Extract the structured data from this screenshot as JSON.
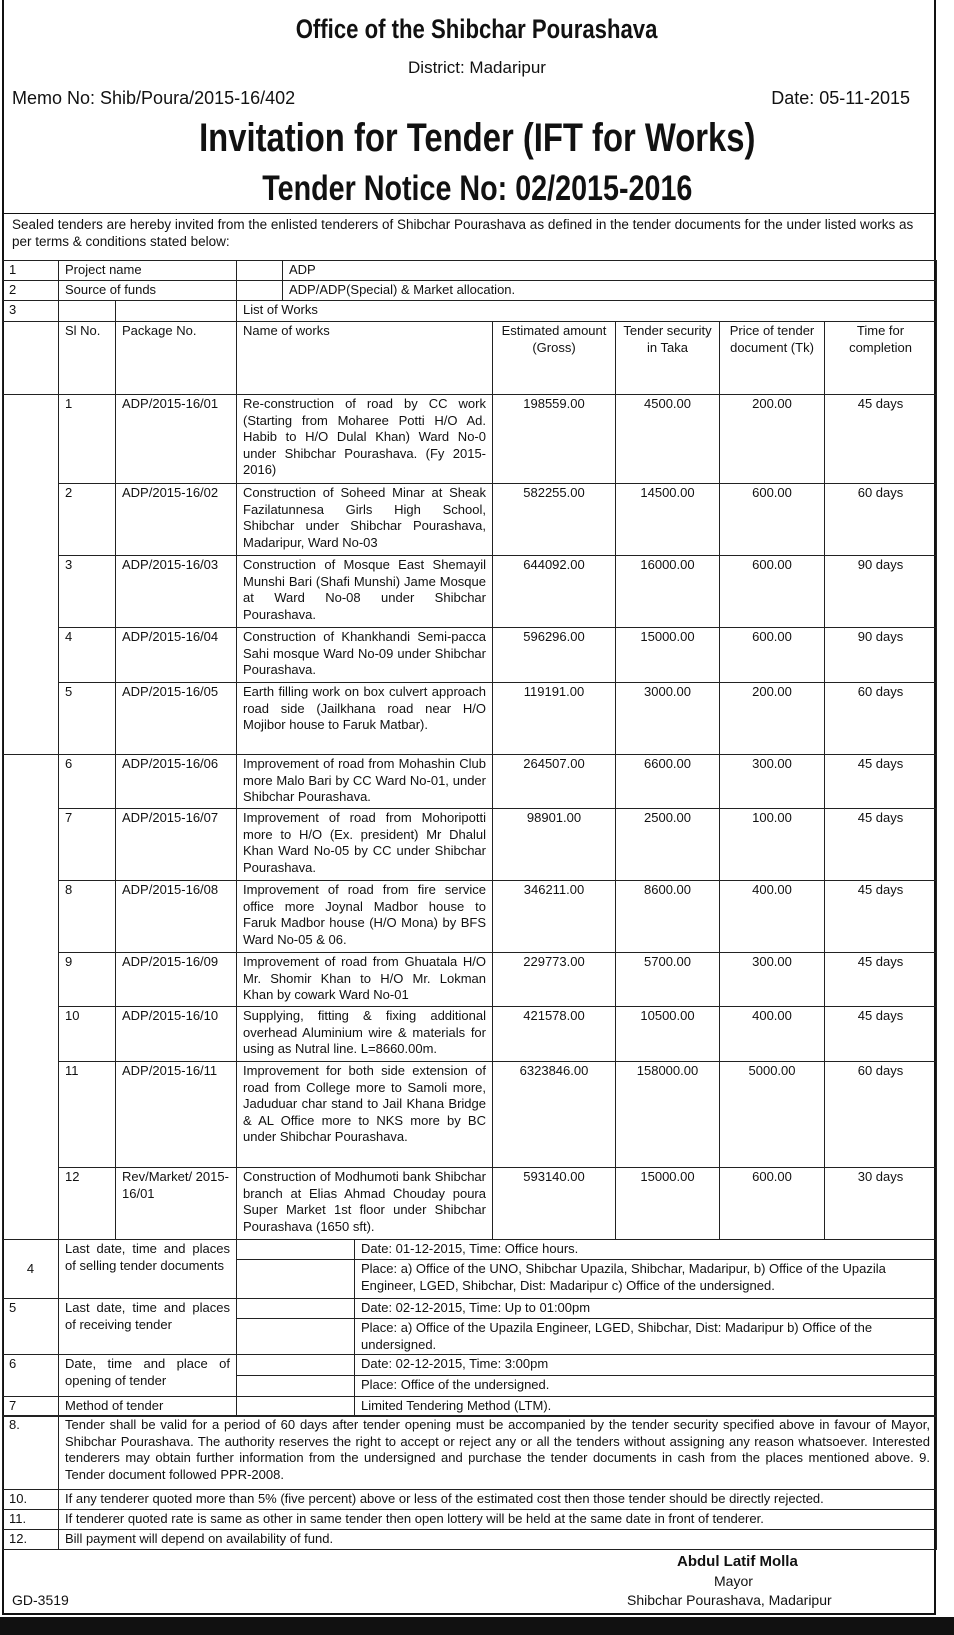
{
  "header": {
    "office_title": "Office of the Shibchar Pourashava",
    "district": "District: Madaripur",
    "memo_no": "Memo No: Shib/Poura/2015-16/402",
    "date": "Date: 05-11-2015",
    "ift_title": "Invitation for Tender (IFT for Works)",
    "tender_notice": "Tender Notice No: 02/2015-2016"
  },
  "intro": "Sealed tenders are hereby invited from the enlisted tenderers of Shibchar Pourashava as defined in the tender documents for the under listed works as per terms & conditions stated below:",
  "top_rows": [
    {
      "no": "1",
      "label": "Project name",
      "value": "ADP"
    },
    {
      "no": "2",
      "label": "Source of funds",
      "value": "ADP/ADP(Special) & Market allocation."
    },
    {
      "no": "3",
      "value": "List of Works"
    }
  ],
  "works": {
    "columns": [
      "Sl No.",
      "Package No.",
      "Name of works",
      "Estimated amount (Gross)",
      "Tender security in Taka",
      "Price of tender document (Tk)",
      "Time for completion"
    ],
    "rows": [
      [
        "1",
        "ADP/2015-16/01",
        "Re-construction of road by CC work (Starting from Moharee Potti H/O Ad. Habib to H/O Dulal Khan) Ward No-0 under Shibchar Pourashava. (Fy 2015-2016)",
        "198559.00",
        "4500.00",
        "200.00",
        "45 days"
      ],
      [
        "2",
        "ADP/2015-16/02",
        "Construction of Soheed Minar at Sheak Fazilatunnesa Girls High School, Shibchar under Shibchar Pourashava, Madaripur, Ward No-03",
        "582255.00",
        "14500.00",
        "600.00",
        "60 days"
      ],
      [
        "3",
        "ADP/2015-16/03",
        "Construction of Mosque East Shemayil Munshi Bari (Shafi Munshi) Jame Mosque at Ward No-08 under Shibchar Pourashava.",
        "644092.00",
        "16000.00",
        "600.00",
        "90 days"
      ],
      [
        "4",
        "ADP/2015-16/04",
        "Construction of Khankhandi Semi-pacca Sahi mosque Ward No-09 under Shibchar Pourashava.",
        "596296.00",
        "15000.00",
        "600.00",
        "90 days"
      ],
      [
        "5",
        "ADP/2015-16/05",
        "Earth filling work on box culvert approach road side (Jailkhana road near H/O Mojibor house to Faruk Matbar).",
        "119191.00",
        "3000.00",
        "200.00",
        "60 days"
      ],
      [
        "6",
        "ADP/2015-16/06",
        "Improvement of road from Mohashin Club more Malo Bari by CC Ward No-01, under Shibchar Pourashava.",
        "264507.00",
        "6600.00",
        "300.00",
        "45 days"
      ],
      [
        "7",
        "ADP/2015-16/07",
        "Improvement of road from Mohoripotti more to H/O (Ex. president) Mr Dhalul Khan Ward No-05 by CC under Shibchar Pourashava.",
        "98901.00",
        "2500.00",
        "100.00",
        "45 days"
      ],
      [
        "8",
        "ADP/2015-16/08",
        "Improvement of road from fire service office more Joynal Madbor house to Faruk Madbor house (H/O Mona) by BFS Ward No-05 & 06.",
        "346211.00",
        "8600.00",
        "400.00",
        "45 days"
      ],
      [
        "9",
        "ADP/2015-16/09",
        "Improvement of road from Ghuatala H/O Mr. Shomir Khan to H/O Mr. Lokman Khan by cowark Ward No-01",
        "229773.00",
        "5700.00",
        "300.00",
        "45 days"
      ],
      [
        "10",
        "ADP/2015-16/10",
        "Supplying, fitting & fixing additional overhead Aluminium wire & materials for using as Nutral line. L=8660.00m.",
        "421578.00",
        "10500.00",
        "400.00",
        "45 days"
      ],
      [
        "11",
        "ADP/2015-16/11",
        "Improvement for both side extension of road from College more to Samoli more, Jaduduar char stand to Jail Khana Bridge & AL Office more to NKS more by BC under Shibchar Pourashava.",
        "6323846.00",
        "158000.00",
        "5000.00",
        "60 days"
      ],
      [
        "12",
        "Rev/Market/ 2015-16/01",
        "Construction of Modhumoti bank Shibchar branch at Elias Ahmad Chouday poura Super Market 1st floor under Shibchar Pourashava (1650 sft).",
        "593140.00",
        "15000.00",
        "600.00",
        "30 days"
      ]
    ]
  },
  "schedule": [
    {
      "no": "4",
      "label": "Last date, time and places of selling tender documents",
      "lines": [
        "Date: 01-12-2015, Time: Office hours.",
        "Place: a) Office of the UNO, Shibchar Upazila, Shibchar, Madaripur, b) Office of the Upazila Engineer, LGED, Shibchar, Dist: Madaripur c) Office of the undersigned."
      ]
    },
    {
      "no": "5",
      "label": "Last date, time and places of receiving tender",
      "lines": [
        "Date: 02-12-2015, Time: Up to 01:00pm",
        "Place: a) Office of the Upazila Engineer, LGED, Shibchar, Dist: Madaripur b) Office of the undersigned."
      ]
    },
    {
      "no": "6",
      "label": "Date, time and place of opening of tender",
      "lines": [
        "Date: 02-12-2015, Time: 3:00pm",
        "Place: Office of the undersigned."
      ]
    },
    {
      "no": "7",
      "label": "Method of tender",
      "lines": [
        "Limited Tendering Method (LTM)."
      ]
    }
  ],
  "notes": [
    {
      "no": "8.",
      "text": "Tender shall be valid for a period of 60 days after tender opening must be accompanied by the tender security specified above in favour of Mayor, Shibchar Pourashava. The authority reserves the right to accept or reject any or all the tenders without assigning any reason whatsoever. Interested tenderers may obtain further information from the undersigned and purchase the tender documents in cash from the places mentioned above. 9. Tender document followed PPR-2008."
    },
    {
      "no": "10.",
      "text": "If any tenderer quoted more than 5% (five percent) above or less of the estimated cost then those tender should be directly rejected."
    },
    {
      "no": "11.",
      "text": "If tenderer quoted rate is same as other in same tender then open lottery will be held at the same date in front of tenderer."
    },
    {
      "no": "12.",
      "text": "Bill payment will depend on availability of fund."
    }
  ],
  "signature": {
    "name": "Abdul Latif Molla",
    "designation": "Mayor",
    "office": "Shibchar Pourashava, Madaripur"
  },
  "footer_code": "GD-3519"
}
